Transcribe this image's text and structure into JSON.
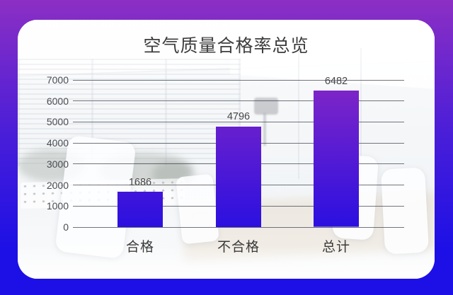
{
  "frame": {
    "gradient_top_color": "#8C2FC4",
    "gradient_mid_color": "#4A1ED8",
    "gradient_bottom_color": "#1C10E6"
  },
  "chart_data": {
    "type": "bar",
    "title": "空气质量合格率总览",
    "categories": [
      "合格",
      "不合格",
      "总计"
    ],
    "values": [
      1686,
      4796,
      6482
    ],
    "data_labels": [
      "1686",
      "4796",
      "6482"
    ],
    "xlabel": "",
    "ylabel": "",
    "ylim": [
      0,
      7000
    ],
    "yticks": [
      0,
      1000,
      2000,
      3000,
      4000,
      5000,
      6000,
      7000
    ],
    "grid": "horizontal gridlines on, dark gray",
    "legend": "none",
    "bar_gradient_top_color": "#8326C6",
    "bar_gradient_bottom_color": "#2B10E0",
    "background": "office meeting room photo faded under white overlay"
  }
}
